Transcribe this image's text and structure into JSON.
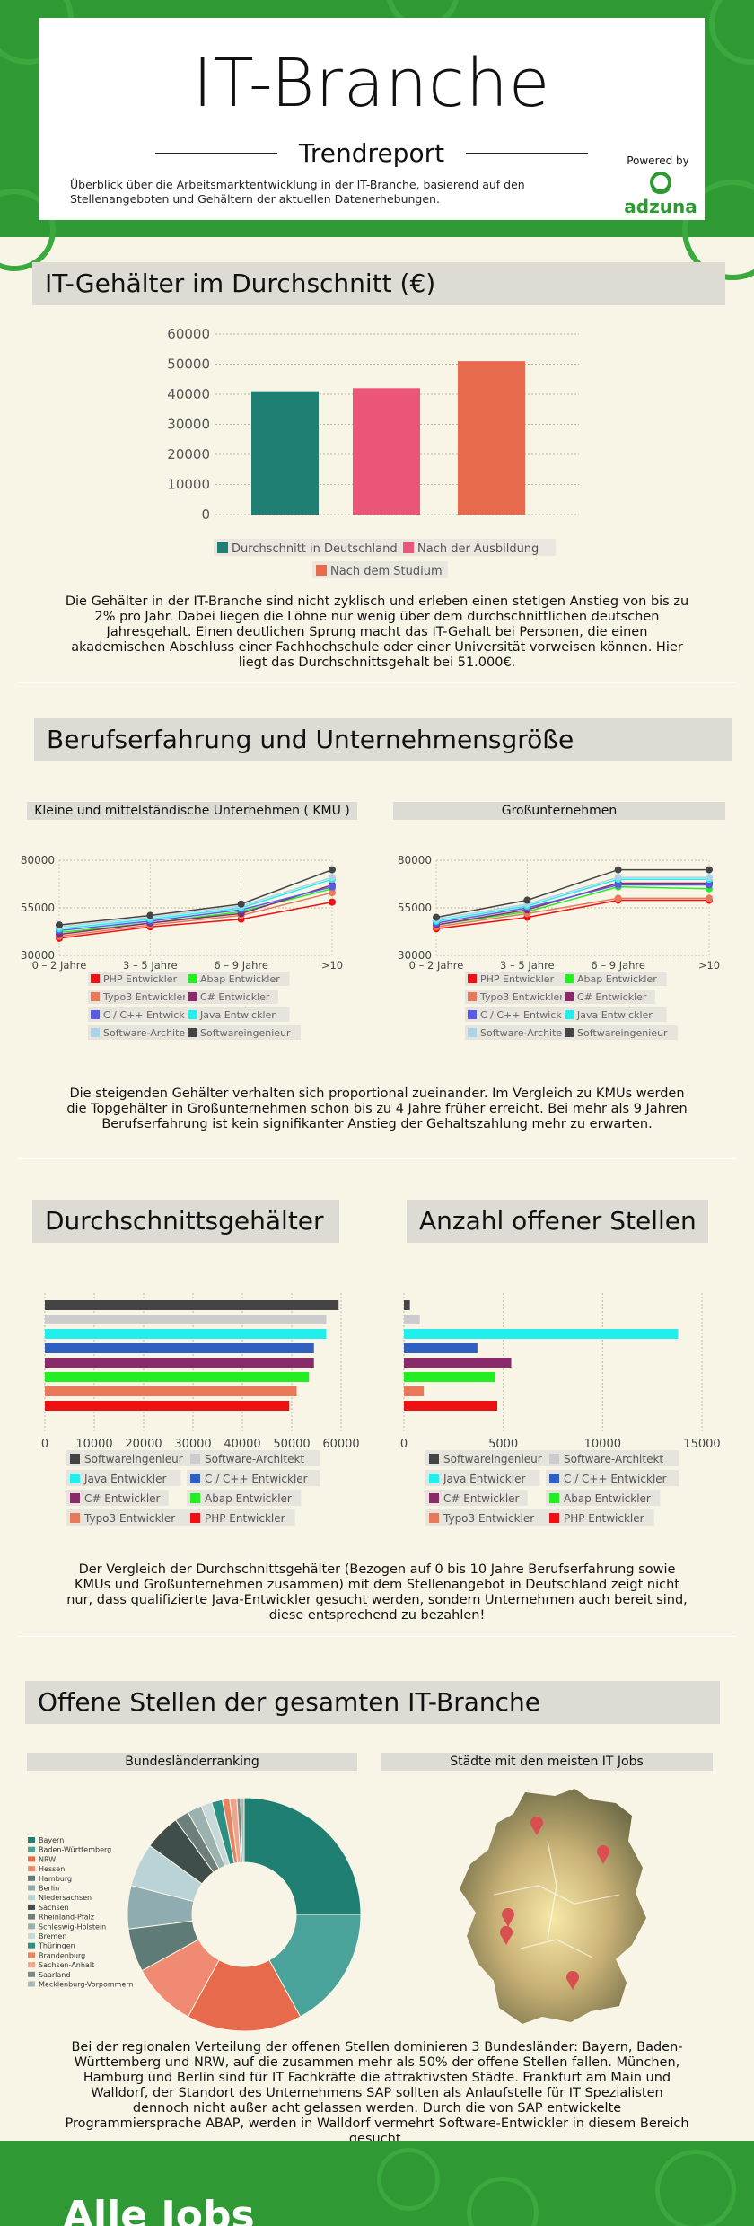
{
  "header": {
    "title": "IT-Branche",
    "subtitle": "Trendreport",
    "intro": "Überblick über die Arbeitsmarktentwicklung in der IT-Branche, basierend auf den Stellenangeboten und Gehältern der aktuellen Datenerhebungen.",
    "powered_by": "Powered by",
    "brand": "adzuna"
  },
  "colors": {
    "green": "#2f9a34",
    "teal": "#1f7f73",
    "pink": "#ea5578",
    "orange": "#e86a4c"
  },
  "section1": {
    "heading": "IT-Gehälter im Durchschnitt (€)",
    "paragraph": "Die Gehälter in der IT-Branche sind nicht zyklisch und erleben einen stetigen Anstieg von bis zu 2% pro Jahr. Dabei liegen die Löhne nur wenig über dem durchschnittlichen deutschen Jahresgehalt. Einen deutlichen Sprung macht das IT-Gehalt bei Personen, die einen akademischen Abschluss einer Fachhochschule oder einer Universität vorweisen können. Hier liegt das Durchschnittsgehalt bei 51.000€."
  },
  "section2": {
    "heading": "Berufserfahrung und Unternehmensgröße",
    "left_title": "Kleine und mittelständische Unternehmen ( KMU )",
    "right_title": "Großunternehmen",
    "paragraph": "Die steigenden Gehälter verhalten sich proportional zueinander. Im Vergleich zu KMUs werden die Topgehälter in Großunternehmen schon bis zu 4 Jahre früher erreicht. Bei mehr als 9 Jahren Berufserfahrung ist kein signifikanter Anstieg der Gehaltszahlung mehr zu erwarten."
  },
  "section3": {
    "heading_left": "Durchschnittsgehälter",
    "heading_right": "Anzahl offener Stellen",
    "paragraph": "Der Vergleich der Durchschnittsgehälter (Bezogen auf 0 bis 10 Jahre Berufserfahrung sowie KMUs und Großunternehmen zusammen) mit dem Stellenangebot in Deutschland zeigt nicht nur, dass qualifizierte Java-Entwickler gesucht werden, sondern Unternehmen auch bereit sind, diese entsprechend zu bezahlen!"
  },
  "section4": {
    "heading": "Offene Stellen der gesamten IT-Branche",
    "left_title": "Bundesländerranking",
    "right_title": "Städte mit den meisten IT Jobs",
    "paragraph": "Bei der regionalen Verteilung der offenen Stellen dominieren 3 Bundesländer: Bayern, Baden-Württemberg und NRW, auf die zusammen mehr als 50% der offene Stellen fallen. München, Hamburg und Berlin sind für IT Fachkräfte die attraktivsten Städte. Frankfurt am Main und Walldorf, der Standort des Unternehmens SAP sollten als Anlaufstelle für IT Spezialisten dennoch nicht außer acht gelassen werden. Durch die von SAP entwickelte Programmiersprache ABAP, werden in Walldorf vermehrt Software-Entwickler in diesem Bereich gesucht."
  },
  "footer": {
    "teaser": "Alle Jobs"
  },
  "chart_data": [
    {
      "id": "avg_salary",
      "type": "bar",
      "categories": [
        "Durchschnitt in Deutschland",
        "Nach der Ausbildung",
        "Nach dem Studium"
      ],
      "values": [
        41000,
        42000,
        51000
      ],
      "colors": [
        "#1f7f73",
        "#ea5578",
        "#e86a4c"
      ],
      "ylim": [
        0,
        60000
      ],
      "yticks": [
        0,
        10000,
        20000,
        30000,
        40000,
        50000,
        60000
      ],
      "legend": [
        "Durchschnitt in Deutschland",
        "Nach der Ausbildung",
        "Nach dem Studium"
      ],
      "legend_position": "bottom",
      "grid": true
    },
    {
      "id": "kmu",
      "type": "line",
      "title": "Kleine und mittelständische Unternehmen ( KMU )",
      "x": [
        "0 – 2 Jahre",
        "3 – 5 Jahre",
        "6 – 9 Jahre",
        ">10"
      ],
      "ylim": [
        30000,
        80000
      ],
      "yticks": [
        30000,
        55000,
        80000
      ],
      "series": [
        {
          "name": "PHP Entwickler",
          "color": "#ee1111",
          "values": [
            39000,
            45000,
            49000,
            58000
          ]
        },
        {
          "name": "Abap Entwickler",
          "color": "#22ee22",
          "values": [
            42000,
            47000,
            53000,
            65000
          ]
        },
        {
          "name": "Typo3 Entwickler",
          "color": "#e8785a",
          "values": [
            40000,
            46000,
            51000,
            63000
          ]
        },
        {
          "name": "C# Entwickler",
          "color": "#8b2a6b",
          "values": [
            41000,
            47000,
            52000,
            67000
          ]
        },
        {
          "name": "C / C++ Entwickler",
          "color": "#5a5ae8",
          "values": [
            43000,
            48000,
            54000,
            66000
          ]
        },
        {
          "name": "Java Entwickler",
          "color": "#22eeee",
          "values": [
            44000,
            49000,
            55000,
            70000
          ]
        },
        {
          "name": "Software-Architekt",
          "color": "#aad4e8",
          "values": [
            45000,
            50000,
            56000,
            71000
          ]
        },
        {
          "name": "Softwareingenieur",
          "color": "#444444",
          "values": [
            46000,
            51000,
            57000,
            75000
          ]
        }
      ],
      "legend_position": "bottom"
    },
    {
      "id": "gross",
      "type": "line",
      "title": "Großunternehmen",
      "x": [
        "0 – 2 Jahre",
        "3 – 5 Jahre",
        "6 – 9 Jahre",
        ">10"
      ],
      "ylim": [
        30000,
        80000
      ],
      "yticks": [
        30000,
        55000,
        80000
      ],
      "series": [
        {
          "name": "PHP Entwickler",
          "color": "#ee1111",
          "values": [
            44000,
            50000,
            59000,
            59000
          ]
        },
        {
          "name": "Abap Entwickler",
          "color": "#22ee22",
          "values": [
            46000,
            53000,
            66000,
            65000
          ]
        },
        {
          "name": "Typo3 Entwickler",
          "color": "#e8785a",
          "values": [
            45000,
            52000,
            60000,
            60000
          ]
        },
        {
          "name": "C# Entwickler",
          "color": "#8b2a6b",
          "values": [
            46000,
            54000,
            68000,
            68000
          ]
        },
        {
          "name": "C / C++ Entwickler",
          "color": "#5a5ae8",
          "values": [
            47000,
            55000,
            67000,
            67000
          ]
        },
        {
          "name": "Java Entwickler",
          "color": "#22eeee",
          "values": [
            48000,
            56000,
            70000,
            70000
          ]
        },
        {
          "name": "Software-Architekt",
          "color": "#aad4e8",
          "values": [
            49000,
            57000,
            71000,
            71000
          ]
        },
        {
          "name": "Softwareingenieur",
          "color": "#444444",
          "values": [
            50000,
            59000,
            75000,
            75000
          ]
        }
      ],
      "legend_position": "bottom"
    },
    {
      "id": "avg_by_role",
      "type": "bar",
      "orientation": "horizontal",
      "categories": [
        "Softwareingenieur",
        "Software-Architekt",
        "Java Entwickler",
        "C / C++ Entwickler",
        "C# Entwickler",
        "Abap Entwickler",
        "Typo3 Entwickler",
        "PHP Entwickler"
      ],
      "colors": [
        "#444444",
        "#cccccc",
        "#22eeee",
        "#2f5fbf",
        "#8b2a6b",
        "#22ee22",
        "#e8785a",
        "#ee1111"
      ],
      "values": [
        59500,
        57000,
        57000,
        54500,
        54500,
        53500,
        51000,
        49500
      ],
      "xlim": [
        0,
        60000
      ],
      "xticks": [
        0,
        10000,
        20000,
        30000,
        40000,
        50000,
        60000
      ],
      "legend_position": "bottom"
    },
    {
      "id": "open_positions",
      "type": "bar",
      "orientation": "horizontal",
      "categories": [
        "Softwareingenieur",
        "Software-Architekt",
        "Java Entwickler",
        "C / C++ Entwickler",
        "C# Entwickler",
        "Abap Entwickler",
        "Typo3 Entwickler",
        "PHP Entwickler"
      ],
      "colors": [
        "#444444",
        "#cccccc",
        "#22eeee",
        "#2f5fbf",
        "#8b2a6b",
        "#22ee22",
        "#e8785a",
        "#ee1111"
      ],
      "values": [
        300,
        800,
        13800,
        3700,
        5400,
        4600,
        1000,
        4700
      ],
      "xlim": [
        0,
        15000
      ],
      "xticks": [
        0,
        5000,
        10000,
        15000
      ],
      "legend_position": "bottom"
    },
    {
      "id": "states",
      "type": "pie",
      "donut": true,
      "labels": [
        "Bayern",
        "Baden-Württemberg",
        "NRW",
        "Hessen",
        "Hamburg",
        "Berlin",
        "Niedersachsen",
        "Sachsen",
        "Rheinland-Pfalz",
        "Schleswig-Holstein",
        "Bremen",
        "Thüringen",
        "Brandenburg",
        "Sachsen-Anhalt",
        "Saarland",
        "Mecklenburg-Vorpommern"
      ],
      "values": [
        25,
        17,
        16,
        9,
        6,
        6,
        6,
        5,
        2,
        2,
        1.5,
        1.5,
        1,
        1,
        0.5,
        0.5
      ],
      "colors": [
        "#1f7f73",
        "#4aa39a",
        "#e86a4c",
        "#f08a72",
        "#5f7b78",
        "#8fadb0",
        "#b9d3d6",
        "#3f4d4b",
        "#6c7f7c",
        "#9bb2b0",
        "#c7d9d8",
        "#2a8f85",
        "#e9825f",
        "#f2a38d",
        "#7b8b89",
        "#a9bbb9"
      ],
      "legend_position": "left"
    }
  ]
}
